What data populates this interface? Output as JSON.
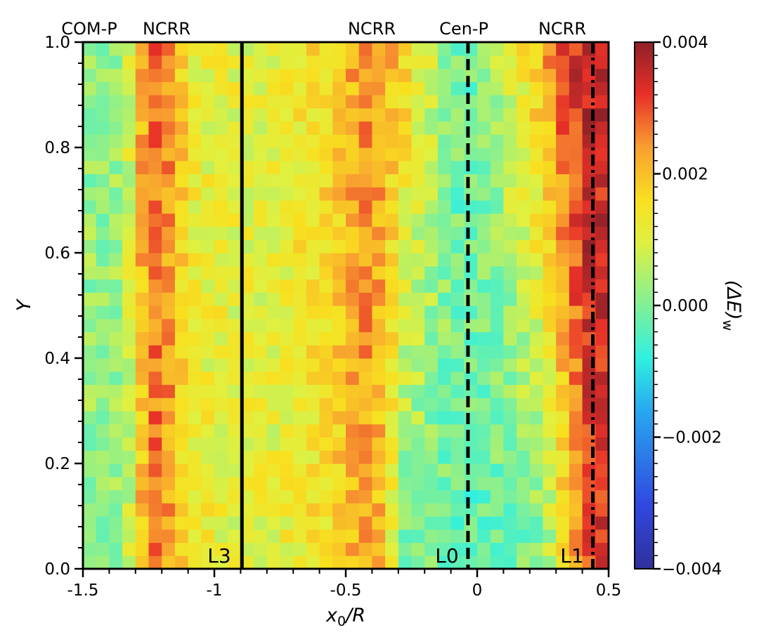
{
  "chart_data": {
    "type": "heatmap",
    "xlabel": "x0/R",
    "xlabel_main": "x",
    "xlabel_sub": "0",
    "xlabel_tail": "/R",
    "ylabel": "Y",
    "xlim": [
      -1.5,
      0.5
    ],
    "ylim": [
      0.0,
      1.0
    ],
    "x_ticks": [
      -1.5,
      -1,
      -0.5,
      0,
      0.5
    ],
    "x_tick_labels": [
      "-1.5",
      "-1",
      "-0.5",
      "0",
      "0.5"
    ],
    "y_ticks": [
      0.0,
      0.2,
      0.4,
      0.6,
      0.8,
      1.0
    ],
    "y_tick_labels": [
      "0.0",
      "0.2",
      "0.4",
      "0.6",
      "0.8",
      "1.0"
    ],
    "colorbar": {
      "label": "(ΔE)w",
      "label_main": "(ΔE)",
      "label_sub": "w",
      "range": [
        -0.004,
        0.004
      ],
      "ticks": [
        0.004,
        0.002,
        0.0,
        -0.002,
        -0.004
      ],
      "tick_labels": [
        "0.004",
        "0.002",
        "0.000",
        "−0.002",
        "−0.004"
      ]
    },
    "grid": {
      "nx": 40,
      "ny": 40,
      "profile_x": [
        -1.5,
        -1.35,
        -1.3,
        -1.25,
        -1.15,
        -1.1,
        -0.9,
        -0.75,
        -0.55,
        -0.4,
        -0.28,
        -0.05,
        0.1,
        0.25,
        0.35,
        0.42,
        0.5
      ],
      "profile_low": [
        0.0002,
        0.0003,
        0.0012,
        0.0028,
        0.0022,
        0.0013,
        0.0011,
        0.0011,
        0.0016,
        0.0025,
        0.0,
        -0.0003,
        -0.0002,
        0.0,
        0.0018,
        0.003,
        0.0034
      ],
      "profile_high": [
        0.0002,
        0.0003,
        0.0015,
        0.0028,
        0.0024,
        0.0012,
        0.0011,
        0.0011,
        0.0018,
        0.0026,
        0.0018,
        -0.0003,
        0.0006,
        0.0022,
        0.0032,
        0.0037,
        0.0034
      ],
      "seed": 7
    },
    "vlines": [
      {
        "x": -0.895,
        "style": "solid",
        "label": "L3"
      },
      {
        "x": -0.035,
        "style": "dashed",
        "label": "L0"
      },
      {
        "x": 0.44,
        "style": "dashdot",
        "label": "L1"
      }
    ],
    "region_labels": [
      "COM-P",
      "NCRR",
      "NCRR",
      "Cen-P",
      "NCRR"
    ]
  }
}
